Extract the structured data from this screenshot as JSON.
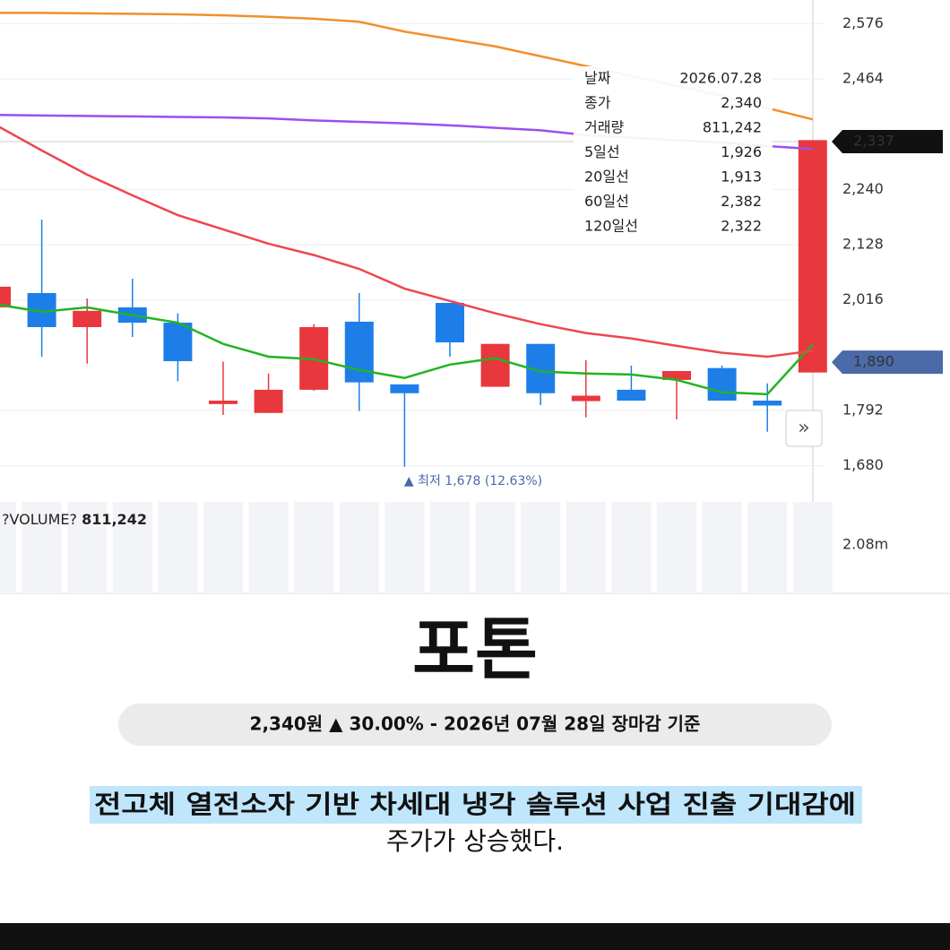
{
  "chart_data": {
    "type": "candlestick",
    "ylim": [
      1634,
      2624
    ],
    "yticks": [
      {
        "value": 2576,
        "label": "2,576"
      },
      {
        "value": 2464,
        "label": "2,464"
      },
      {
        "value": 2240,
        "label": "2,240"
      },
      {
        "value": 2128,
        "label": "2,128"
      },
      {
        "value": 2016,
        "label": "2,016"
      },
      {
        "value": 1792,
        "label": "1,792"
      },
      {
        "value": 1680,
        "label": "1,680"
      }
    ],
    "up_color": "#e8383d",
    "down_color": "#1e7ee8",
    "open": [
      2001,
      2030,
      1961,
      2001,
      1970,
      1805,
      1787,
      1834,
      1972,
      1845,
      2010,
      1840,
      1927,
      1811,
      1834,
      1854,
      1878,
      1812,
      1869
    ],
    "high": [
      2043,
      2179,
      2019,
      2059,
      1989,
      1891,
      1867,
      1967,
      2030,
      1845,
      2010,
      1927,
      1927,
      1894,
      1883,
      1872,
      1883,
      1847,
      2340
    ],
    "low": [
      2001,
      1901,
      1887,
      1941,
      1851,
      1783,
      1787,
      1832,
      1791,
      1678,
      1901,
      1840,
      1803,
      1778,
      1812,
      1774,
      1812,
      1749,
      1869
    ],
    "close": [
      2043,
      1961,
      1994,
      1970,
      1892,
      1812,
      1834,
      1961,
      1849,
      1827,
      1930,
      1927,
      1827,
      1822,
      1812,
      1872,
      1812,
      1802,
      2340
    ],
    "series": [
      {
        "name": "5일선",
        "color": "#22b322",
        "values": [
          2007,
          1992,
          2001,
          1985,
          1970,
          1927,
          1901,
          1896,
          1874,
          1858,
          1885,
          1898,
          1871,
          1867,
          1865,
          1854,
          1829,
          1825,
          1926
        ]
      },
      {
        "name": "20일선",
        "color": "#ee4650",
        "values": [
          2370,
          2319,
          2270,
          2228,
          2188,
          2159,
          2130,
          2107,
          2079,
          2039,
          2014,
          1989,
          1967,
          1949,
          1938,
          1923,
          1909,
          1901,
          1913
        ]
      },
      {
        "name": "60일선",
        "color": "#f28f2c",
        "values": [
          2598,
          2598,
          2597,
          2596,
          2595,
          2593,
          2590,
          2586,
          2580,
          2560,
          2545,
          2530,
          2510,
          2490,
          2470,
          2450,
          2430,
          2405,
          2382
        ]
      },
      {
        "name": "120일선",
        "color": "#9a4ff0",
        "values": [
          2391,
          2390,
          2389,
          2388,
          2387,
          2386,
          2384,
          2380,
          2377,
          2374,
          2370,
          2365,
          2360,
          2350,
          2345,
          2340,
          2335,
          2328,
          2322
        ]
      }
    ],
    "tooltip": {
      "rows": [
        {
          "label": "날짜",
          "value": "2026.07.28",
          "color": "#222"
        },
        {
          "label": "종가",
          "value": "2,340",
          "color": "#e8383d"
        },
        {
          "label": "거래량",
          "value": "811,242",
          "color": "#222"
        }
      ],
      "ma_value_labels": [
        "1,926",
        "1,913",
        "2,382",
        "2,322"
      ]
    },
    "price_tags": [
      {
        "value": 2337,
        "label": "2,337",
        "color": "#111"
      },
      {
        "value": 1890,
        "label": "1,890",
        "color": "#4a6aa8"
      }
    ],
    "annotation": "▲ 최저 1,678 (12.63%)",
    "volume": {
      "label": "?VOLUME?",
      "value_label": "811,242",
      "tick": "2.08m"
    }
  },
  "stock": {
    "name": "포톤",
    "summary": "2,340원 ▲ 30.00% - 2026년 07월 28일 장마감 기준"
  },
  "caption": {
    "highlight": "전고체 열전소자 기반 차세대 냉각 솔루션 사업 진출 기대감에",
    "rest": "주가가 상승했다."
  }
}
